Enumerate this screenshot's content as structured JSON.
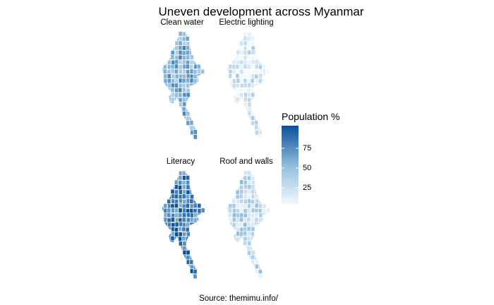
{
  "title": "Uneven development across Myanmar",
  "source": "Source: themimu.info/",
  "panels": [
    {
      "name": "Clean water",
      "level": 0.55
    },
    {
      "name": "Electric lighting",
      "level": 0.15
    },
    {
      "name": "Literacy",
      "level": 0.78
    },
    {
      "name": "Roof and walls",
      "level": 0.28
    }
  ],
  "legend": {
    "title": "Population %",
    "ticks": [
      "25",
      "50",
      "75"
    ],
    "range": [
      0,
      100
    ],
    "color_low": "#f7fbff",
    "color_high": "#08519c"
  },
  "chart_data": {
    "type": "choropleth",
    "title": "Uneven development across Myanmar",
    "facets": [
      "Clean water",
      "Electric lighting",
      "Literacy",
      "Roof and walls"
    ],
    "fill_variable": "Population %",
    "scale_ticks": [
      25,
      50,
      75
    ],
    "scale_range": [
      0,
      100
    ],
    "caption": "Source: themimu.info/"
  }
}
